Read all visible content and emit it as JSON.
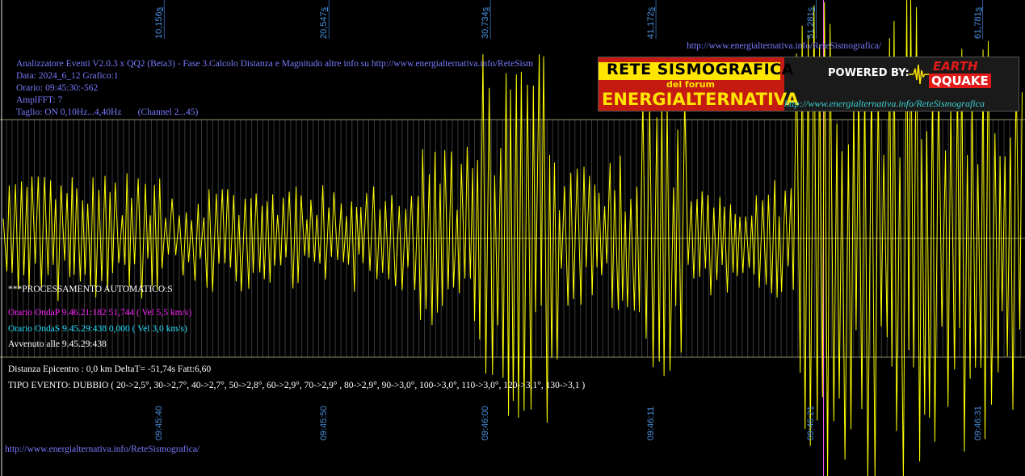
{
  "header": {
    "title_line": "Analizzatore Eventi V2.0.3 x QQ2 (Beta3) - Fase 3.Calcolo Distanza e Magnitudo altre info su http://www.energialternativa.info/ReteSism",
    "data_line": "Data: 2024_6_12 Grafico:1",
    "orario_line": "Orario: 09:45:30:-562",
    "ampl_line": "AmplFFT: 7",
    "taglio_line": "Taglio: ON 0,10Hz...4,40Hz       (Channel 2...45)"
  },
  "top_url": "http://www.energialternativa.info/ReteSismografica/",
  "bottom_url": "http://www.energialternativa.info/ReteSismografica/",
  "logo": {
    "line1": "RETE SISMOGRAFICA",
    "line2": "del forum",
    "line3": "ENERGIALTERNATIVA",
    "powered": "POWERED BY:",
    "brand_top": "EARTH",
    "brand_bottom": "QQUAKE",
    "url": "http://www.energialternativa.info/ReteSismografica"
  },
  "processing": {
    "heading": "***PROCESSAMENTO AUTOMATICO:S",
    "onda_p": "Orario OndaP 9.46.21:182  51,744 ( Vel 5,5 km/s)",
    "onda_s": "Orario OndaS 9.45.29:438  0,000 ( Vel 3,0 km/s)",
    "avvenuto": "Avvenuto alle 9.45.29:438",
    "distanza": "Distanza Epicentro : 0,0 km DeltaT= -51,74s  Fatt:6,60",
    "tipo": "TIPO EVENTO: DUBBIO ( 20->2,5°, 30->2,7°, 40->2,7°, 50->2,8°, 60->2,9°, 70->2,9° , 80->2,9°, 90->3,0°, 100->3,0°, 110->3,0°, 120->3,1°, 130->3,1 )"
  },
  "colors": {
    "background": "#000000",
    "signal": "#ffff00",
    "grid": "#cfcf9a",
    "marker": "#ff66ff",
    "axis_label": "#4a90e0"
  },
  "chart_data": {
    "type": "line",
    "top_axis_ticks": [
      {
        "num": "10,156",
        "unit": "s",
        "t": 10.156
      },
      {
        "num": "20,547",
        "unit": "s",
        "t": 20.547
      },
      {
        "num": "30,734",
        "unit": "s",
        "t": 30.734
      },
      {
        "num": "41,172",
        "unit": "s",
        "t": 41.172
      },
      {
        "num": "51,281",
        "unit": "s",
        "t": 51.281
      },
      {
        "num": "61,781",
        "unit": "s",
        "t": 61.781
      }
    ],
    "bottom_axis_ticks": [
      {
        "label": "09:45:40",
        "t": 10.156
      },
      {
        "label": "09:45:50",
        "t": 20.547
      },
      {
        "label": "09:46:00",
        "t": 30.734
      },
      {
        "label": "09:46:11",
        "t": 41.172
      },
      {
        "label": "09:46:21",
        "t": 51.281
      },
      {
        "label": "09:46:31",
        "t": 61.781
      }
    ],
    "p_wave_marker_t": 51.744,
    "t_range": [
      0,
      64.3
    ],
    "amplitude_range": [
      -1,
      1
    ],
    "signal": {
      "seed": 7,
      "segments": [
        {
          "t0": 0,
          "t1": 10,
          "amp": 0.55
        },
        {
          "t0": 10,
          "t1": 26,
          "amp": 0.45
        },
        {
          "t0": 26,
          "t1": 30,
          "amp": 0.8
        },
        {
          "t0": 30,
          "t1": 35,
          "amp": 1.6
        },
        {
          "t0": 35,
          "t1": 40,
          "amp": 0.7
        },
        {
          "t0": 40,
          "t1": 43,
          "amp": 1.3
        },
        {
          "t0": 43,
          "t1": 50,
          "amp": 0.5
        },
        {
          "t0": 50,
          "t1": 58,
          "amp": 2.2
        },
        {
          "t0": 58,
          "t1": 64.3,
          "amp": 1.8
        }
      ]
    }
  }
}
